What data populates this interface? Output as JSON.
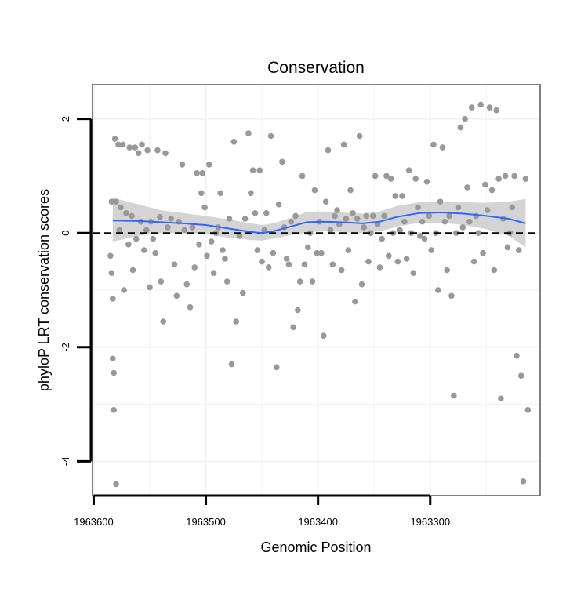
{
  "chart_data": {
    "type": "scatter",
    "title": "Conservation",
    "xlabel": "Genomic Position",
    "ylabel": "phyloP LRT conservation scores",
    "x_reversed": true,
    "xlim": [
      1963202,
      1963601
    ],
    "ylim": [
      -4.6,
      2.6
    ],
    "x_ticks": [
      1963600,
      1963500,
      1963400,
      1963300
    ],
    "x_tick_labels": [
      "1963600",
      "1963500",
      "1963400",
      "1963300"
    ],
    "y_ticks": [
      2,
      0,
      -2,
      -4
    ],
    "y_tick_labels": [
      "2",
      "0",
      "-2",
      "-4"
    ],
    "grid": true,
    "reference_line": {
      "y": 0,
      "style": "dashed",
      "color": "#000000"
    },
    "colors": {
      "points": "#999999",
      "smooth_line": "#3366ff",
      "confidence_band": "#cccccc",
      "panel_border": "#7f7f7f",
      "grid": "#f2f2f2"
    },
    "smooth": {
      "x": [
        1963583,
        1963560,
        1963540,
        1963520,
        1963500,
        1963480,
        1963460,
        1963450,
        1963440,
        1963425,
        1963410,
        1963395,
        1963380,
        1963360,
        1963345,
        1963330,
        1963310,
        1963290,
        1963270,
        1963250,
        1963230,
        1963215
      ],
      "y": [
        0.22,
        0.21,
        0.19,
        0.17,
        0.14,
        0.08,
        0.02,
        0.0,
        0.03,
        0.11,
        0.19,
        0.2,
        0.19,
        0.17,
        0.2,
        0.28,
        0.35,
        0.36,
        0.34,
        0.3,
        0.25,
        0.17
      ],
      "lower": [
        -0.15,
        -0.05,
        0.0,
        0.01,
        -0.02,
        -0.08,
        -0.12,
        -0.13,
        -0.1,
        -0.04,
        0.01,
        0.03,
        0.02,
        0.0,
        0.03,
        0.11,
        0.18,
        0.18,
        0.14,
        0.07,
        -0.05,
        -0.25
      ],
      "upper": [
        0.62,
        0.5,
        0.4,
        0.35,
        0.3,
        0.24,
        0.17,
        0.14,
        0.17,
        0.26,
        0.37,
        0.38,
        0.36,
        0.34,
        0.38,
        0.47,
        0.54,
        0.55,
        0.54,
        0.53,
        0.55,
        0.6
      ]
    },
    "series": [
      {
        "x": [
          1963585,
          1963584,
          1963584,
          1963583,
          1963583,
          1963582,
          1963582,
          1963581,
          1963580,
          1963580,
          1963578,
          1963577,
          1963576,
          1963574,
          1963573,
          1963571,
          1963569,
          1963568,
          1963566,
          1963565,
          1963563,
          1963562,
          1963560,
          1963558,
          1963557,
          1963555,
          1963553,
          1963552,
          1963550,
          1963549,
          1963547,
          1963545,
          1963543,
          1963541,
          1963540,
          1963538,
          1963536,
          1963534,
          1963531,
          1963528,
          1963526,
          1963524,
          1963521,
          1963519,
          1963517,
          1963514,
          1963512,
          1963510,
          1963508,
          1963506,
          1963504,
          1963503,
          1963501,
          1963499,
          1963497,
          1963495,
          1963493,
          1963491,
          1963489,
          1963487,
          1963485,
          1963483,
          1963481,
          1963479,
          1963477,
          1963475,
          1963473,
          1963470,
          1963467,
          1963465,
          1963462,
          1963460,
          1963458,
          1963456,
          1963454,
          1963452,
          1963450,
          1963448,
          1963446,
          1963444,
          1963442,
          1963440,
          1963437,
          1963435,
          1963432,
          1963430,
          1963428,
          1963426,
          1963424,
          1963422,
          1963420,
          1963418,
          1963416,
          1963414,
          1963412,
          1963409,
          1963407,
          1963405,
          1963403,
          1963401,
          1963399,
          1963397,
          1963395,
          1963393,
          1963391,
          1963389,
          1963387,
          1963385,
          1963383,
          1963381,
          1963379,
          1963377,
          1963375,
          1963373,
          1963371,
          1963369,
          1963367,
          1963365,
          1963363,
          1963361,
          1963359,
          1963357,
          1963355,
          1963353,
          1963351,
          1963349,
          1963347,
          1963345,
          1963343,
          1963341,
          1963339,
          1963337,
          1963335,
          1963333,
          1963331,
          1963329,
          1963327,
          1963325,
          1963323,
          1963321,
          1963319,
          1963317,
          1963315,
          1963313,
          1963311,
          1963309,
          1963307,
          1963305,
          1963303,
          1963301,
          1963299,
          1963297,
          1963295,
          1963293,
          1963291,
          1963289,
          1963287,
          1963285,
          1963283,
          1963281,
          1963279,
          1963277,
          1963275,
          1963273,
          1963271,
          1963269,
          1963267,
          1963265,
          1963263,
          1963261,
          1963259,
          1963257,
          1963255,
          1963253,
          1963251,
          1963249,
          1963247,
          1963245,
          1963243,
          1963241,
          1963239,
          1963237,
          1963235,
          1963233,
          1963231,
          1963229,
          1963227,
          1963225,
          1963223,
          1963221,
          1963219,
          1963217,
          1963215,
          1963213
        ],
        "y": [
          -0.4,
          -0.7,
          0.55,
          -2.2,
          -1.15,
          -3.1,
          -2.45,
          1.65,
          -4.4,
          0.55,
          1.55,
          0.05,
          0.45,
          1.55,
          -1.0,
          0.35,
          -0.2,
          1.5,
          0.3,
          -0.65,
          1.5,
          -0.1,
          1.4,
          0.2,
          1.55,
          -0.3,
          0.05,
          1.45,
          -0.95,
          0.2,
          -0.1,
          -0.35,
          1.45,
          0.28,
          -0.85,
          -1.55,
          1.4,
          0.1,
          0.25,
          -0.55,
          -1.1,
          0.2,
          1.2,
          0.05,
          -0.9,
          -1.3,
          0.1,
          -0.6,
          1.05,
          -0.2,
          0.7,
          1.05,
          0.45,
          -0.4,
          1.2,
          -0.15,
          -0.7,
          0.0,
          0.1,
          0.7,
          -0.3,
          -0.45,
          -0.85,
          0.25,
          -2.3,
          1.6,
          -1.55,
          -0.05,
          -1.05,
          0.25,
          1.75,
          0.7,
          1.1,
          0.35,
          -0.3,
          1.1,
          -0.5,
          0.05,
          0.35,
          -0.6,
          1.7,
          -0.35,
          -2.35,
          0.5,
          1.25,
          0.1,
          -0.45,
          -0.55,
          0.2,
          -1.65,
          0.3,
          -1.35,
          -0.85,
          1.0,
          -0.55,
          -0.25,
          0.0,
          -0.85,
          0.75,
          -0.35,
          0.2,
          -0.35,
          -1.8,
          0.55,
          1.45,
          0.05,
          -0.55,
          0.3,
          0.4,
          0.15,
          -0.65,
          1.55,
          0.25,
          -0.3,
          0.75,
          0.35,
          -1.2,
          0.25,
          1.7,
          -0.9,
          0.1,
          0.3,
          -0.5,
          0.0,
          0.3,
          1.0,
          0.15,
          -0.6,
          -0.1,
          0.3,
          1.0,
          -0.4,
          0.95,
          0.0,
          0.65,
          -0.5,
          0.05,
          0.65,
          0.2,
          -0.45,
          1.1,
          0.0,
          -0.7,
          0.95,
          0.45,
          -0.05,
          0.2,
          -0.1,
          0.9,
          0.3,
          -0.3,
          1.55,
          0.0,
          -1.0,
          0.55,
          1.5,
          0.2,
          -0.65,
          0.3,
          -1.1,
          -2.85,
          0.0,
          0.45,
          1.85,
          0.1,
          2.0,
          0.8,
          0.2,
          2.2,
          -0.5,
          0.3,
          0.0,
          2.25,
          -0.35,
          0.85,
          0.4,
          2.2,
          0.75,
          -0.65,
          2.15,
          0.95,
          -2.9,
          0.25,
          1.0,
          -0.25,
          0.0,
          0.45,
          1.0,
          -2.15,
          -0.3,
          -2.5,
          -4.35,
          0.95,
          -3.1
        ]
      }
    ]
  }
}
